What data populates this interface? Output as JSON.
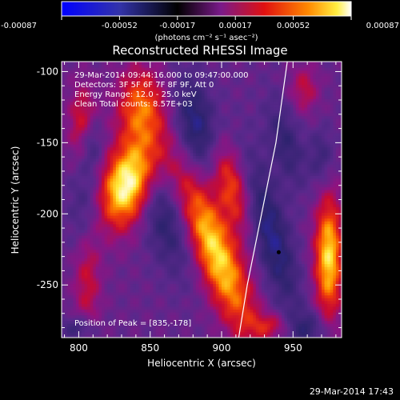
{
  "chart_data": {
    "type": "heatmap",
    "title": "Reconstructed RHESSI Image",
    "xlabel": "Heliocentric X (arcsec)",
    "ylabel": "Heliocentric Y (arcsec)",
    "xlim": [
      788,
      984
    ],
    "ylim": [
      -287,
      -93
    ],
    "x_ticks": [
      800,
      850,
      900,
      950
    ],
    "y_ticks": [
      -100,
      -150,
      -200,
      -250
    ],
    "colorbar": {
      "ticks": [
        "-0.00087",
        "-0.00052",
        "-0.00017",
        "0.00017",
        "0.00052",
        "0.00087"
      ],
      "min": -0.00087,
      "max": 0.00087,
      "unit_label": "(photons cm⁻² s⁻¹ asec⁻²)"
    },
    "info_lines": [
      "29-Mar-2014 09:44:16.000 to 09:47:00.000",
      "Detectors: 3F 5F 6F 7F 8F 9F, Att 0",
      "Energy Range: 12.0 - 25.0 keV",
      "Clean    Total counts: 8.57E+03"
    ],
    "peak_label": "Position of Peak = [835,-178]",
    "peak": {
      "x": 835,
      "y": -178
    },
    "marker": {
      "x": 940,
      "y": -227
    },
    "limb": [
      [
        946,
        -93
      ],
      [
        938,
        -150
      ],
      [
        928,
        -200
      ],
      [
        918,
        -250
      ],
      [
        912,
        -287
      ]
    ],
    "sources": [
      {
        "x": 835,
        "y": -178,
        "amp": 1.0,
        "sx": 13,
        "sy": 22,
        "angle": -18
      },
      {
        "x": 843,
        "y": -125,
        "amp": 0.55,
        "sx": 12,
        "sy": 20,
        "angle": 0
      },
      {
        "x": 803,
        "y": -138,
        "amp": 0.45,
        "sx": 7,
        "sy": 20,
        "angle": 0
      },
      {
        "x": 806,
        "y": -238,
        "amp": 0.4,
        "sx": 7,
        "sy": 30,
        "angle": 0
      },
      {
        "x": 895,
        "y": -225,
        "amp": 0.82,
        "sx": 11,
        "sy": 45,
        "angle": 22
      },
      {
        "x": 907,
        "y": -180,
        "amp": 0.5,
        "sx": 8,
        "sy": 22,
        "angle": 15
      },
      {
        "x": 975,
        "y": -230,
        "amp": 0.8,
        "sx": 7,
        "sy": 30,
        "angle": 0
      },
      {
        "x": 958,
        "y": -112,
        "amp": 0.3,
        "sx": 7,
        "sy": 12,
        "angle": 0
      },
      {
        "x": 935,
        "y": -278,
        "amp": 0.3,
        "sx": 10,
        "sy": 6,
        "angle": 0
      },
      {
        "x": 805,
        "y": -200,
        "amp": -0.35,
        "sx": 8,
        "sy": 26,
        "angle": 0
      },
      {
        "x": 808,
        "y": -150,
        "amp": -0.35,
        "sx": 6,
        "sy": 14,
        "angle": 0
      },
      {
        "x": 860,
        "y": -200,
        "amp": -0.4,
        "sx": 12,
        "sy": 30,
        "angle": 20
      },
      {
        "x": 882,
        "y": -138,
        "amp": -0.45,
        "sx": 10,
        "sy": 24,
        "angle": 10
      },
      {
        "x": 935,
        "y": -215,
        "amp": -0.45,
        "sx": 9,
        "sy": 38,
        "angle": 15
      },
      {
        "x": 945,
        "y": -150,
        "amp": -0.3,
        "sx": 8,
        "sy": 22,
        "angle": 15
      },
      {
        "x": 960,
        "y": -280,
        "amp": -0.3,
        "sx": 10,
        "sy": 8,
        "angle": 0
      },
      {
        "x": 800,
        "y": -280,
        "amp": -0.3,
        "sx": 8,
        "sy": 6,
        "angle": 0
      },
      {
        "x": 970,
        "y": -160,
        "amp": -0.25,
        "sx": 6,
        "sy": 14,
        "angle": 0
      }
    ]
  },
  "footer": {
    "timestamp": "29-Mar-2014 17:43"
  }
}
